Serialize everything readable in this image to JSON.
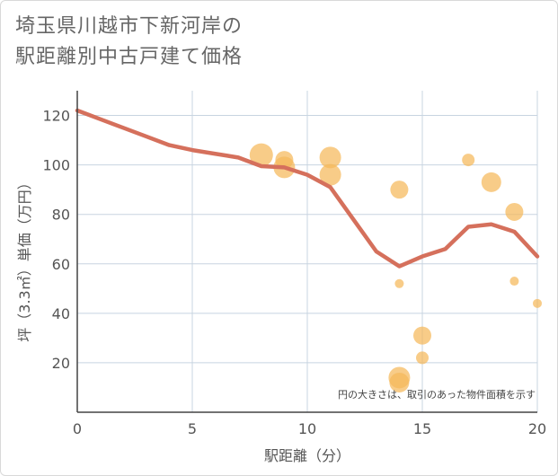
{
  "title": {
    "line1": "埼玉県川越市下新河岸の",
    "line2": "駅距離別中古戸建て価格"
  },
  "chart_data": {
    "type": "scatter",
    "xlabel": "駅距離（分）",
    "ylabel": "坪（3.3㎡）単価（万円）",
    "xlim": [
      0,
      20
    ],
    "ylim": [
      0,
      130
    ],
    "x_ticks": [
      0,
      5,
      10,
      15,
      20
    ],
    "y_ticks": [
      20,
      40,
      60,
      80,
      100,
      120
    ],
    "note": "円の大きさは、取引のあった物件面積を示す",
    "colors": {
      "bubble": "#f5b95a",
      "line": "#d5705c",
      "grid": "#c8d4e0",
      "axis": "#444444"
    },
    "bubbles": [
      {
        "x": 8,
        "y": 104,
        "size": 5
      },
      {
        "x": 9,
        "y": 102,
        "size": 3.5
      },
      {
        "x": 9,
        "y": 99,
        "size": 4.5
      },
      {
        "x": 11,
        "y": 103,
        "size": 4.5
      },
      {
        "x": 11,
        "y": 96,
        "size": 4.5
      },
      {
        "x": 14,
        "y": 90,
        "size": 3.5
      },
      {
        "x": 14,
        "y": 52,
        "size": 1
      },
      {
        "x": 14,
        "y": 14,
        "size": 4.5
      },
      {
        "x": 14,
        "y": 12,
        "size": 4
      },
      {
        "x": 15,
        "y": 31,
        "size": 3.5
      },
      {
        "x": 15,
        "y": 22,
        "size": 2
      },
      {
        "x": 17,
        "y": 102,
        "size": 2
      },
      {
        "x": 18,
        "y": 93,
        "size": 4
      },
      {
        "x": 19,
        "y": 81,
        "size": 3.5
      },
      {
        "x": 19,
        "y": 53,
        "size": 1
      },
      {
        "x": 20,
        "y": 44,
        "size": 1
      }
    ],
    "trend": {
      "x": [
        0,
        1,
        2,
        3,
        4,
        5,
        6,
        7,
        8,
        9,
        10,
        11,
        12,
        13,
        14,
        15,
        16,
        17,
        18,
        19,
        20
      ],
      "y": [
        122,
        118.5,
        115,
        111.5,
        108,
        106,
        104.5,
        103,
        99.5,
        99,
        96,
        91,
        78,
        65,
        59,
        63,
        66,
        75,
        76,
        73,
        63
      ]
    }
  }
}
